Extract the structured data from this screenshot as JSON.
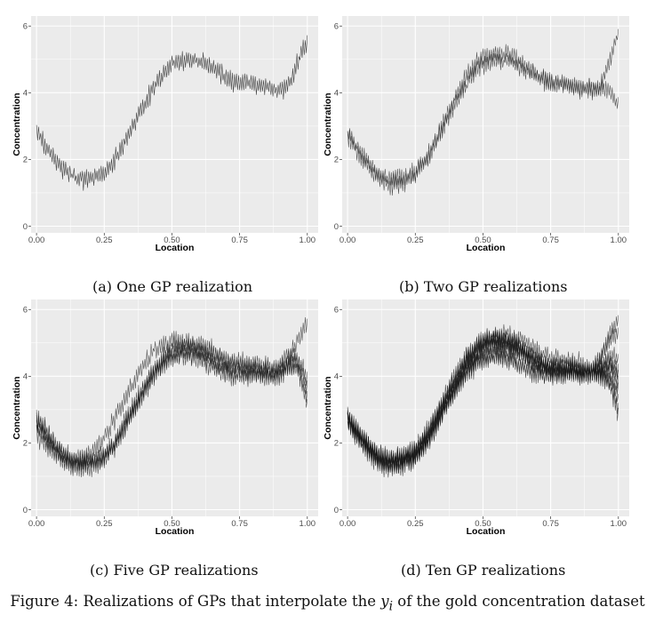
{
  "chart_data": [
    {
      "type": "line",
      "panel_label": "(a) One GP realization",
      "xlabel": "Location",
      "ylabel": "Concentration",
      "xlim": [
        -0.02,
        1.04
      ],
      "ylim": [
        -0.2,
        6.3
      ],
      "x_ticks": [
        "0.00",
        "0.25",
        "0.50",
        "0.75",
        "1.00"
      ],
      "y_ticks": [
        "0",
        "2",
        "4",
        "6"
      ],
      "grid": true,
      "n_realizations": 1,
      "mean_curve": {
        "x": [
          0.0,
          0.05,
          0.1,
          0.15,
          0.2,
          0.25,
          0.3,
          0.35,
          0.4,
          0.45,
          0.5,
          0.55,
          0.6,
          0.65,
          0.7,
          0.75,
          0.8,
          0.85,
          0.9,
          0.93,
          0.96,
          1.0
        ],
        "y": [
          2.8,
          2.2,
          1.7,
          1.4,
          1.45,
          1.6,
          2.1,
          2.9,
          3.7,
          4.4,
          4.85,
          5.0,
          4.95,
          4.75,
          4.45,
          4.3,
          4.25,
          4.2,
          4.1,
          4.2,
          4.6,
          5.6
        ]
      }
    },
    {
      "type": "line",
      "panel_label": "(b) Two GP realizations",
      "xlabel": "Location",
      "ylabel": "Concentration",
      "xlim": [
        -0.02,
        1.04
      ],
      "ylim": [
        -0.2,
        6.3
      ],
      "x_ticks": [
        "0.00",
        "0.25",
        "0.50",
        "0.75",
        "1.00"
      ],
      "y_ticks": [
        "0",
        "2",
        "4",
        "6"
      ],
      "grid": true,
      "n_realizations": 2,
      "mean_curve": {
        "x": [
          0.0,
          0.05,
          0.1,
          0.15,
          0.2,
          0.25,
          0.3,
          0.35,
          0.4,
          0.45,
          0.5,
          0.55,
          0.6,
          0.65,
          0.7,
          0.75,
          0.8,
          0.85,
          0.9,
          0.93,
          0.96,
          1.0
        ],
        "y": [
          2.8,
          2.2,
          1.7,
          1.4,
          1.45,
          1.6,
          2.1,
          2.9,
          3.7,
          4.4,
          4.85,
          5.0,
          4.95,
          4.75,
          4.45,
          4.3,
          4.25,
          4.2,
          4.1,
          4.2,
          4.6,
          5.6
        ]
      },
      "tail_endpoints": [
        5.7,
        3.6
      ]
    },
    {
      "type": "line",
      "panel_label": "(c) Five GP realizations",
      "xlabel": "Location",
      "ylabel": "Concentration",
      "xlim": [
        -0.02,
        1.04
      ],
      "ylim": [
        -0.2,
        6.3
      ],
      "x_ticks": [
        "0.00",
        "0.25",
        "0.50",
        "0.75",
        "1.00"
      ],
      "y_ticks": [
        "0",
        "2",
        "4",
        "6"
      ],
      "grid": true,
      "n_realizations": 5,
      "mean_curve": {
        "x": [
          0.0,
          0.05,
          0.1,
          0.15,
          0.2,
          0.25,
          0.3,
          0.35,
          0.4,
          0.45,
          0.5,
          0.55,
          0.6,
          0.65,
          0.7,
          0.75,
          0.8,
          0.85,
          0.9,
          0.93,
          0.96,
          1.0
        ],
        "y": [
          2.8,
          2.2,
          1.7,
          1.4,
          1.45,
          1.6,
          2.1,
          2.9,
          3.7,
          4.4,
          4.85,
          5.0,
          4.95,
          4.75,
          4.45,
          4.3,
          4.25,
          4.2,
          4.1,
          4.2,
          4.6,
          5.6
        ]
      },
      "tail_endpoints": [
        5.6,
        3.9,
        3.4,
        3.1,
        3.6
      ]
    },
    {
      "type": "line",
      "panel_label": "(d) Ten GP realizations",
      "xlabel": "Location",
      "ylabel": "Concentration",
      "xlim": [
        -0.02,
        1.04
      ],
      "ylim": [
        -0.2,
        6.3
      ],
      "x_ticks": [
        "0.00",
        "0.25",
        "0.50",
        "0.75",
        "1.00"
      ],
      "y_ticks": [
        "0",
        "2",
        "4",
        "6"
      ],
      "grid": true,
      "n_realizations": 10,
      "mean_curve": {
        "x": [
          0.0,
          0.05,
          0.1,
          0.15,
          0.2,
          0.25,
          0.3,
          0.35,
          0.4,
          0.45,
          0.5,
          0.55,
          0.6,
          0.65,
          0.7,
          0.75,
          0.8,
          0.85,
          0.9,
          0.93,
          0.96,
          1.0
        ],
        "y": [
          2.8,
          2.2,
          1.7,
          1.4,
          1.45,
          1.6,
          2.1,
          2.9,
          3.7,
          4.4,
          4.85,
          5.0,
          4.95,
          4.75,
          4.45,
          4.3,
          4.25,
          4.2,
          4.1,
          4.2,
          4.6,
          5.6
        ]
      },
      "tail_endpoints": [
        5.7,
        5.3,
        4.5,
        4.0,
        3.6,
        3.3,
        3.0,
        2.8,
        4.2,
        3.8
      ]
    }
  ],
  "figure_caption": {
    "prefix": "Figure 4: Realizations of GPs that interpolate the ",
    "variable": "y",
    "subscript": "i",
    "suffix": " of the gold concentration dataset"
  },
  "colors": {
    "panel_background": "#ebebeb",
    "grid": "#ffffff",
    "line": "#1a1a1a",
    "tick_text": "#4d4d4d"
  }
}
